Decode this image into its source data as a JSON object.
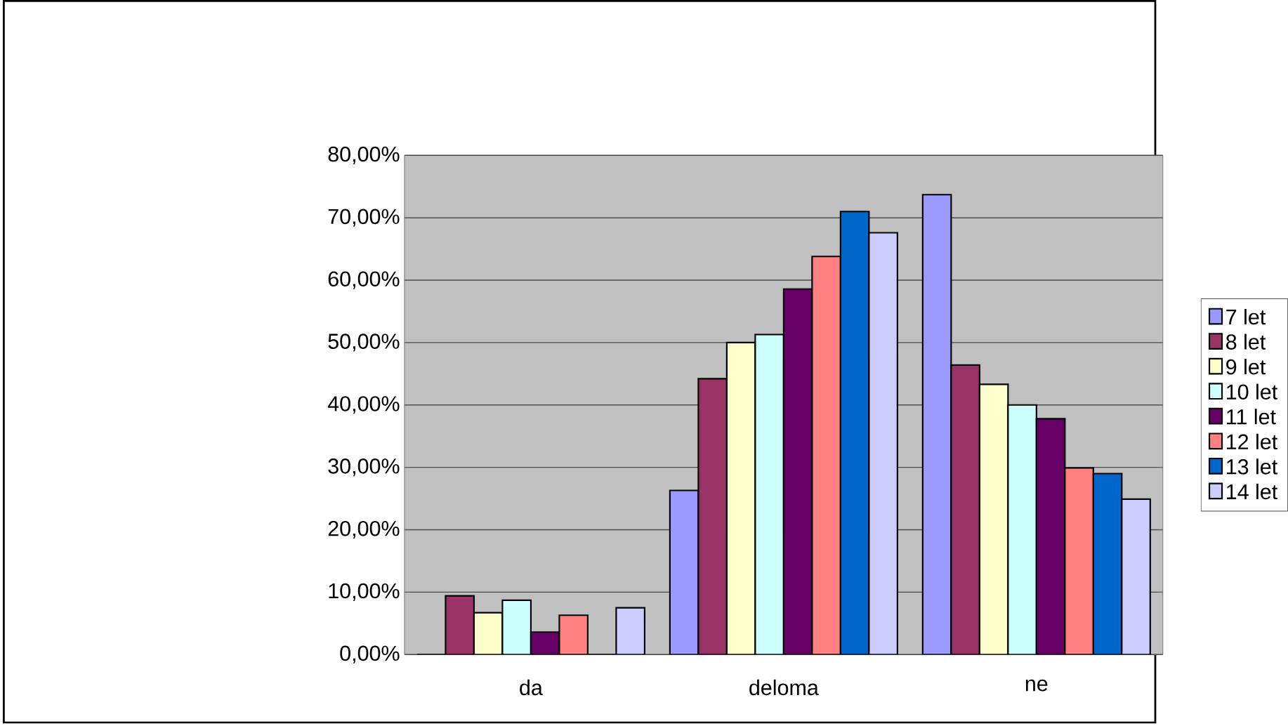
{
  "chart_data": {
    "type": "bar",
    "categories": [
      "da",
      "deloma",
      "ne"
    ],
    "series": [
      {
        "name": "7 let",
        "color": "#9999ff",
        "values": [
          0,
          26.3,
          73.7
        ]
      },
      {
        "name": "8 let",
        "color": "#993366",
        "values": [
          9.4,
          44.2,
          46.4
        ]
      },
      {
        "name": "9 let",
        "color": "#ffffcc",
        "values": [
          6.7,
          50,
          43.3
        ]
      },
      {
        "name": "10 let",
        "color": "#ccffff",
        "values": [
          8.7,
          51.3,
          40
        ]
      },
      {
        "name": "11 let",
        "color": "#660066",
        "values": [
          3.6,
          58.6,
          37.8
        ]
      },
      {
        "name": "12 let",
        "color": "#ff8080",
        "values": [
          6.3,
          63.8,
          29.9
        ]
      },
      {
        "name": "13 let",
        "color": "#0066cc",
        "values": [
          0,
          71,
          29
        ]
      },
      {
        "name": "14 let",
        "color": "#ccccff",
        "values": [
          7.5,
          67.6,
          24.9
        ]
      }
    ],
    "ylim": [
      0,
      80
    ],
    "yticks": [
      {
        "value": 0,
        "label": "0,00%"
      },
      {
        "value": 10,
        "label": "10,00%"
      },
      {
        "value": 20,
        "label": "20,00%"
      },
      {
        "value": 30,
        "label": "30,00%"
      },
      {
        "value": 40,
        "label": "40,00%"
      },
      {
        "value": 50,
        "label": "50,00%"
      },
      {
        "value": 60,
        "label": "60,00%"
      },
      {
        "value": 70,
        "label": "70,00%"
      },
      {
        "value": 80,
        "label": "80,00%"
      }
    ],
    "grid": "y",
    "legend": "right"
  }
}
